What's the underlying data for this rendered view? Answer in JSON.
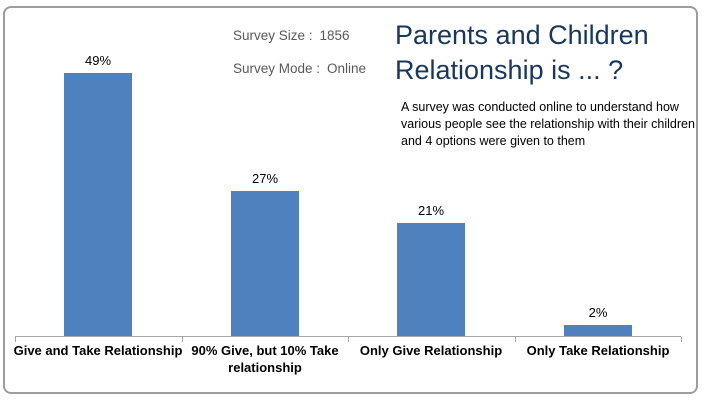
{
  "title": {
    "line1": "Parents and Children",
    "line2": "Relationship is ... ?",
    "color": "#17375d"
  },
  "subtitle": "A survey was conducted online to understand how various people see the relationship with their children and 4 options were given to them",
  "survey_info": {
    "size_label": "Survey Size :",
    "size_value": "1856",
    "mode_label": "Survey Mode :",
    "mode_value": "Online"
  },
  "chart_data": {
    "type": "bar",
    "title": "Parents and Children Relationship is ... ?",
    "categories": [
      "Give and Take Relationship",
      "90% Give, but 10% Take relationship",
      "Only Give Relationship",
      "Only Take Relationship"
    ],
    "values": [
      49,
      27,
      21,
      2
    ],
    "data_labels": [
      "49%",
      "27%",
      "21%",
      "2%"
    ],
    "xlabel": "",
    "ylabel": "",
    "ylim": [
      0,
      55
    ],
    "grid": false,
    "legend": false,
    "bar_color": "#4e81bd",
    "axis_color": "#a6a6a6",
    "annotations": [
      "Survey Size : 1856",
      "Survey Mode : Online"
    ]
  }
}
